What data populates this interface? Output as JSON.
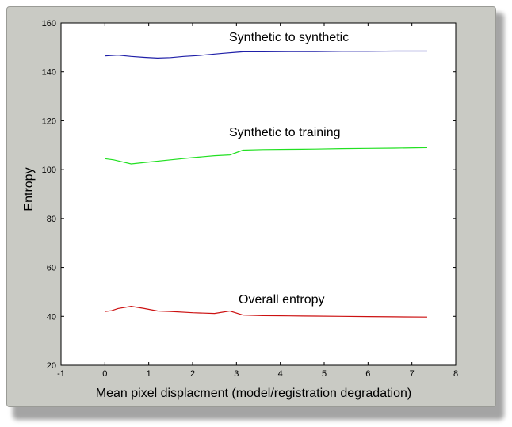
{
  "chart_data": {
    "type": "line",
    "title": "",
    "xlabel": "Mean pixel displacment (model/registration degradation)",
    "ylabel": "Entropy",
    "xlim": [
      -1,
      8
    ],
    "ylim": [
      20,
      160
    ],
    "xticks": [
      -1,
      0,
      1,
      2,
      3,
      4,
      5,
      6,
      7,
      8
    ],
    "yticks": [
      20,
      40,
      60,
      80,
      100,
      120,
      140,
      160
    ],
    "grid": false,
    "legend": "none",
    "series": [
      {
        "annotation": "Synthetic to synthetic",
        "color": "#1f1fa8",
        "x": [
          0,
          0.3,
          0.6,
          0.9,
          1.2,
          1.5,
          1.8,
          2.1,
          2.4,
          2.7,
          3.0,
          3.15,
          3.6,
          4.2,
          4.8,
          5.4,
          6.0,
          6.6,
          7.35
        ],
        "y": [
          146.5,
          146.8,
          146.3,
          145.9,
          145.6,
          145.8,
          146.3,
          146.6,
          147.1,
          147.6,
          148.0,
          148.2,
          148.2,
          148.3,
          148.3,
          148.4,
          148.4,
          148.5,
          148.5
        ]
      },
      {
        "annotation": "Synthetic to training",
        "color": "#22e022",
        "x": [
          0,
          0.2,
          0.6,
          1.0,
          1.5,
          2.0,
          2.5,
          2.85,
          3.15,
          3.6,
          4.2,
          4.8,
          5.4,
          6.0,
          6.6,
          7.35
        ],
        "y": [
          104.5,
          104.0,
          102.3,
          103.1,
          104.0,
          104.9,
          105.7,
          106.0,
          108.0,
          108.2,
          108.3,
          108.4,
          108.6,
          108.7,
          108.8,
          109.0
        ]
      },
      {
        "annotation": "Overall entropy",
        "color": "#cc1111",
        "x": [
          0,
          0.15,
          0.3,
          0.6,
          0.9,
          1.2,
          1.5,
          2.0,
          2.5,
          2.85,
          3.15,
          3.6,
          4.2,
          4.8,
          5.4,
          6.0,
          6.6,
          7.35
        ],
        "y": [
          42.0,
          42.3,
          43.2,
          44.1,
          43.2,
          42.2,
          42.0,
          41.5,
          41.2,
          42.2,
          40.5,
          40.3,
          40.2,
          40.1,
          40.0,
          39.9,
          39.8,
          39.7
        ]
      }
    ]
  }
}
